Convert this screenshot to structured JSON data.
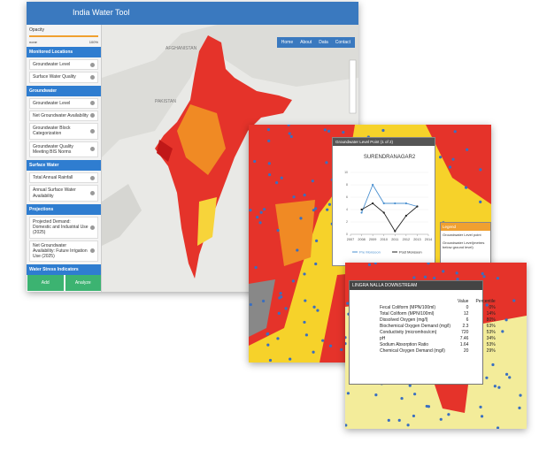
{
  "app": {
    "title": "India Water Tool",
    "nav": [
      "Home",
      "About",
      "Data",
      "Contact"
    ]
  },
  "sidebar": {
    "opacity_label": "Opacity",
    "opacity_min": "none",
    "opacity_max": "100%",
    "sections": [
      {
        "title": "Monitored Locations",
        "items": [
          "Groundwater Level",
          "Surface Water Quality"
        ]
      },
      {
        "title": "Groundwater",
        "items": [
          "Groundwater Level",
          "Net Groundwater Availability",
          "Groundwater Block Categorization",
          "Groundwater Quality Meeting BIS Norms"
        ]
      },
      {
        "title": "Surface Water",
        "items": [
          "Total Annual Rainfall",
          "Annual Surface Water Availability"
        ]
      },
      {
        "title": "Projections",
        "items": [
          "Projected Demand: Domestic and Industrial Use (2025)",
          "Net Groundwater Availability: Future Irrigation Use (2025)"
        ]
      },
      {
        "title": "Water Stress Indicators",
        "items": []
      }
    ],
    "buttons": [
      "Add",
      "Analyze"
    ]
  },
  "map_labels": [
    "AFGHANISTAN",
    "PAKISTAN"
  ],
  "popup": {
    "title": "Groundwater Level Point (1 of 2)",
    "chart_data": {
      "type": "line",
      "title": "SURENDRANAGAR2",
      "x": [
        2008,
        2009,
        2010,
        2011,
        2012,
        2013
      ],
      "xlim": [
        2007,
        2014
      ],
      "xticks": [
        2007,
        2008,
        2009,
        2010,
        2011,
        2012,
        2013,
        2014
      ],
      "ylim": [
        0,
        10
      ],
      "yticks": [
        0,
        2,
        4,
        6,
        8,
        10
      ],
      "series": [
        {
          "name": "Pre Monsoon",
          "color": "#4a90d0",
          "values": [
            3.5,
            8,
            5,
            5,
            5,
            4.5
          ]
        },
        {
          "name": "Post Monsoon",
          "color": "#222222",
          "values": [
            4,
            5,
            3.5,
            0.5,
            3,
            4.5
          ]
        }
      ]
    }
  },
  "legend": {
    "title": "Legend",
    "items": [
      "Groundwater Level point",
      "Groundwater Level(metres below ground level)"
    ]
  },
  "station": {
    "title": "LINGRA NALLA DOWNSTREAM",
    "columns": [
      "Value",
      "Percentile"
    ],
    "rows": [
      [
        "Fecal Coliform (MPN/100ml)",
        "0",
        "0%"
      ],
      [
        "Total Coliform (MPN/100ml)",
        "12",
        "14%"
      ],
      [
        "Dissolved Oxygen (mg/l)",
        "6",
        "80%"
      ],
      [
        "Biochemical Oxygen Demand (mg/l)",
        "2.3",
        "63%"
      ],
      [
        "Conductivity (micromhos/cm)",
        "720",
        "53%"
      ],
      [
        "pH",
        "7.46",
        "34%"
      ],
      [
        "Sodium Absorption Ratio",
        "1.64",
        "53%"
      ],
      [
        "Chemical Oxygen Demand (mg/l)",
        "20",
        "29%"
      ]
    ]
  }
}
